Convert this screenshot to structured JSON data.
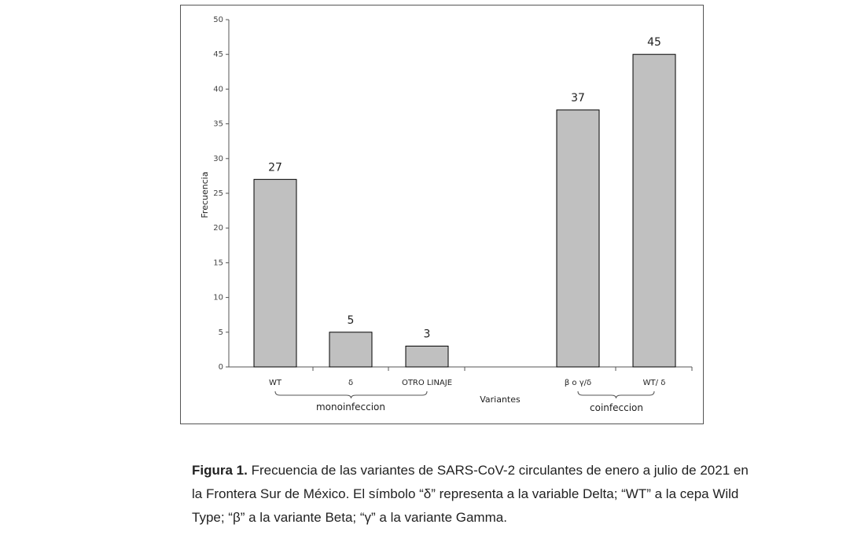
{
  "chart_data": {
    "type": "bar",
    "ylabel": "Frecuencia",
    "xlabel": "Variantes",
    "ylim": [
      0,
      50
    ],
    "yticks": [
      0,
      5,
      10,
      15,
      20,
      25,
      30,
      35,
      40,
      45,
      50
    ],
    "categories": [
      "WT",
      "δ",
      "OTRO LINAJE",
      "β o γ/δ",
      "WT/ δ"
    ],
    "values": [
      27,
      5,
      3,
      37,
      45
    ],
    "data_labels": [
      "27",
      "5",
      "3",
      "37",
      "45"
    ],
    "groups": [
      {
        "label": "monoinfeccion",
        "categories": [
          "WT",
          "δ",
          "OTRO LINAJE"
        ]
      },
      {
        "label": "coinfeccion",
        "categories": [
          "β o γ/δ",
          "WT/ δ"
        ]
      }
    ],
    "bar_color": "#c0c0c0",
    "grid": false
  },
  "caption": {
    "bold": "Figura 1.",
    "lines": [
      " Frecuencia de las variantes de SARS-CoV-2 circulantes de enero a julio de 2021 en",
      "la Frontera Sur de México. El símbolo “δ” representa a la variable Delta; “WT” a la cepa Wild",
      "Type; “β” a la variante Beta; “γ” a la variante Gamma."
    ]
  }
}
